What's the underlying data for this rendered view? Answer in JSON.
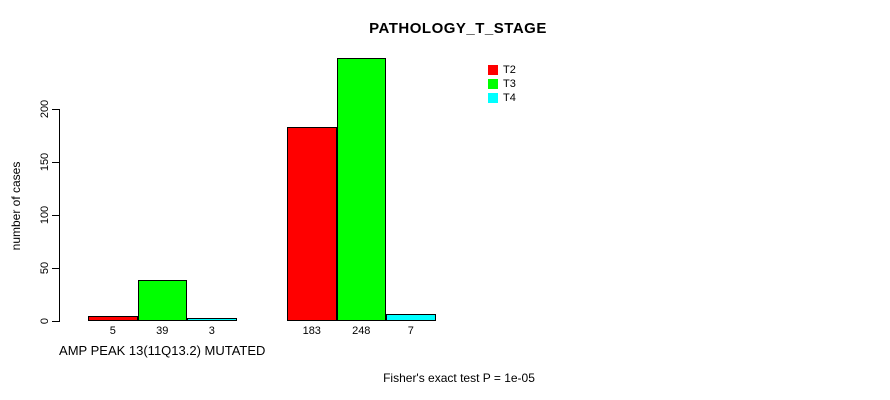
{
  "title": "PATHOLOGY_T_STAGE",
  "y_axis": {
    "label": "number of cases",
    "ticks": [
      0,
      50,
      100,
      150,
      200
    ]
  },
  "legend": {
    "position": "top-right",
    "items": [
      {
        "label": "T2",
        "color": "#FF0000"
      },
      {
        "label": "T3",
        "color": "#00FF00"
      },
      {
        "label": "T4",
        "color": "#00FFFF"
      }
    ]
  },
  "footnote": "Fisher's exact test P = 1e-05",
  "chart_data": {
    "type": "bar",
    "grouped": true,
    "title": "PATHOLOGY_T_STAGE",
    "xlabel": "",
    "ylabel": "number of cases",
    "ylim": [
      0,
      250
    ],
    "grid": false,
    "legend_position": "top-right",
    "show_value_labels": true,
    "categories": [
      "AMP PEAK 13(11Q13.2) MUTATED",
      ""
    ],
    "series": [
      {
        "name": "T2",
        "color": "#FF0000",
        "values": [
          5,
          183
        ]
      },
      {
        "name": "T3",
        "color": "#00FF00",
        "values": [
          39,
          248
        ]
      },
      {
        "name": "T4",
        "color": "#00FFFF",
        "values": [
          3,
          7
        ]
      }
    ],
    "annotations": [
      "Fisher's exact test P = 1e-05"
    ]
  }
}
